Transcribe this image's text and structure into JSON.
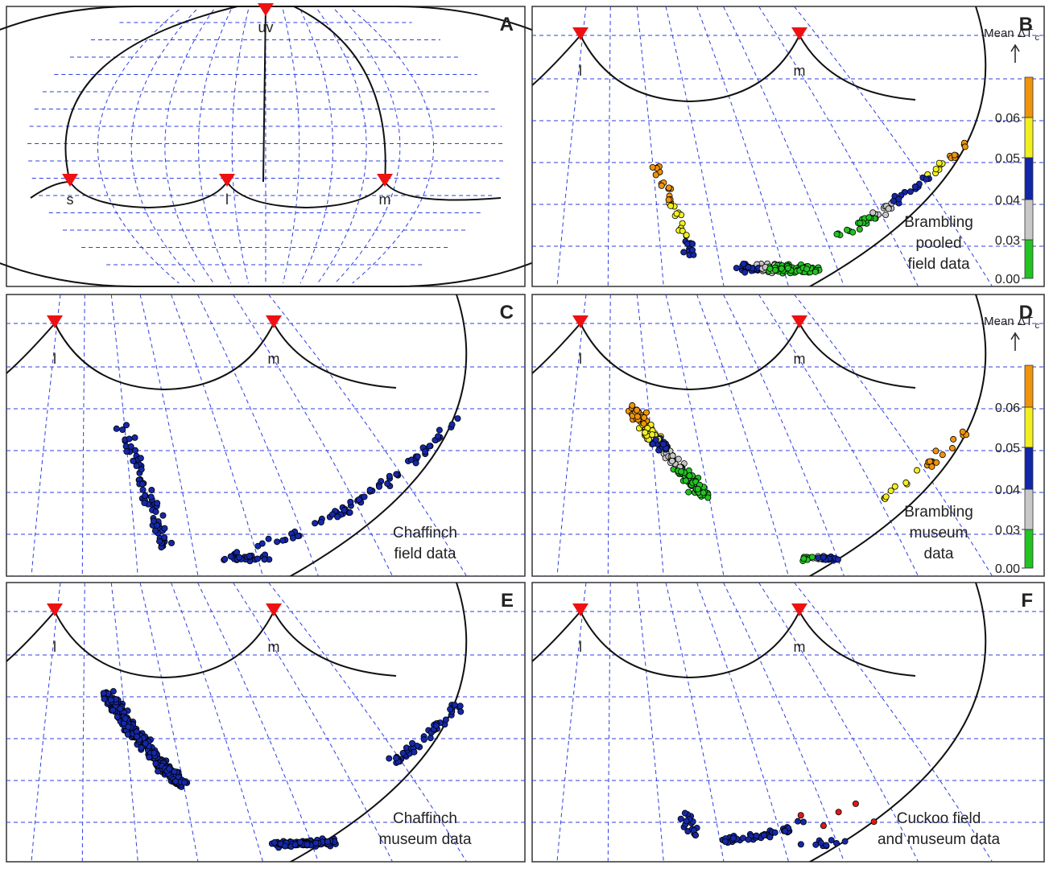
{
  "figure": {
    "colorbar": {
      "title": "Mean ΔT",
      "subscript": "c",
      "ticks": [
        "0.00",
        "0.03",
        "0.04",
        "0.05",
        "0.06"
      ],
      "colors": [
        "#22c322",
        "#c8c8c8",
        "#1226a8",
        "#f2ef1e",
        "#f0940c"
      ]
    },
    "colors": {
      "grid": "#2e3fe0",
      "vertex": "#ee1111",
      "outline": "#111111",
      "blue_dot": "#1428a8",
      "red_dot": "#e01818"
    }
  },
  "chart_data": [
    {
      "panel": "A",
      "type": "scatter",
      "title": "",
      "vertices": [
        "uv",
        "s",
        "l",
        "m"
      ],
      "series": []
    },
    {
      "panel": "B",
      "type": "scatter",
      "label": [
        "Brambling",
        "pooled",
        "field data"
      ],
      "vertices": [
        "l",
        "m"
      ],
      "series": [
        {
          "color_scale": "Mean ΔTc",
          "clusters": [
            {
              "shape": "arm",
              "along": [
                0.15,
                0.34
              ],
              "spread": 0.018,
              "n": 40,
              "bands": [
                "orange",
                "orange",
                "yellow",
                "yellow",
                "blue"
              ]
            },
            {
              "shape": "trough",
              "along": [
                0.3,
                0.62
              ],
              "spread": 0.02,
              "n": 130,
              "bands": [
                "blue",
                "grey",
                "green",
                "green",
                "green"
              ]
            },
            {
              "shape": "arm",
              "along": [
                0.62,
                0.92
              ],
              "spread": 0.018,
              "n": 60,
              "bands": [
                "green",
                "green",
                "grey",
                "blue",
                "blue",
                "yellow",
                "orange"
              ]
            }
          ]
        }
      ]
    },
    {
      "panel": "C",
      "type": "scatter",
      "label": [
        "Chaffinch",
        "field data"
      ],
      "vertices": [
        "l",
        "m"
      ],
      "series": [
        {
          "color": "blue",
          "clusters": [
            {
              "shape": "arm",
              "along": [
                0.08,
                0.35
              ],
              "spread": 0.02,
              "n": 70
            },
            {
              "shape": "trough",
              "along": [
                0.35,
                0.5
              ],
              "spread": 0.025,
              "n": 25
            },
            {
              "shape": "arm",
              "along": [
                0.5,
                0.95
              ],
              "spread": 0.018,
              "n": 70
            }
          ]
        }
      ]
    },
    {
      "panel": "D",
      "type": "scatter",
      "label": [
        "Brambling",
        "museum",
        "data"
      ],
      "vertices": [
        "l",
        "m"
      ],
      "series": [
        {
          "color_scale": "Mean ΔTc",
          "clusters": [
            {
              "shape": "steep",
              "along": [
                0.06,
                0.6
              ],
              "spread": 0.022,
              "n": 190,
              "bands": [
                "orange",
                "orange",
                "yellow",
                "yellow",
                "blue",
                "grey",
                "grey",
                "green",
                "green",
                "green",
                "green"
              ]
            },
            {
              "shape": "trough",
              "along": [
                0.55,
                0.72
              ],
              "spread": 0.015,
              "n": 25,
              "bands": [
                "green",
                "grey",
                "blue",
                "blue"
              ]
            },
            {
              "shape": "arm",
              "along": [
                0.72,
                0.92
              ],
              "spread": 0.02,
              "n": 22,
              "bands": [
                "yellow",
                "yellow",
                "orange",
                "orange"
              ]
            }
          ]
        }
      ]
    },
    {
      "panel": "E",
      "type": "scatter",
      "label": [
        "Chaffinch",
        "museum data"
      ],
      "vertices": [
        "l",
        "m"
      ],
      "series": [
        {
          "color": "blue",
          "clusters": [
            {
              "shape": "steep",
              "along": [
                0.04,
                0.62
              ],
              "spread": 0.02,
              "n": 320
            },
            {
              "shape": "trough",
              "along": [
                0.55,
                0.8
              ],
              "spread": 0.018,
              "n": 120
            },
            {
              "shape": "arm",
              "along": [
                0.8,
                0.95
              ],
              "spread": 0.02,
              "n": 50
            }
          ]
        }
      ]
    },
    {
      "panel": "F",
      "type": "scatter",
      "label": [
        "Cuckoo field",
        "and museum data"
      ],
      "vertices": [
        "l",
        "m"
      ],
      "series": [
        {
          "color": "blue",
          "clusters": [
            {
              "shape": "arm",
              "along": [
                0.3,
                0.55
              ],
              "spread": 0.022,
              "n": 60
            },
            {
              "shape": "trough",
              "along": [
                0.55,
                0.75
              ],
              "spread": 0.02,
              "n": 10
            }
          ]
        },
        {
          "color": "red",
          "points": 5
        }
      ]
    }
  ]
}
